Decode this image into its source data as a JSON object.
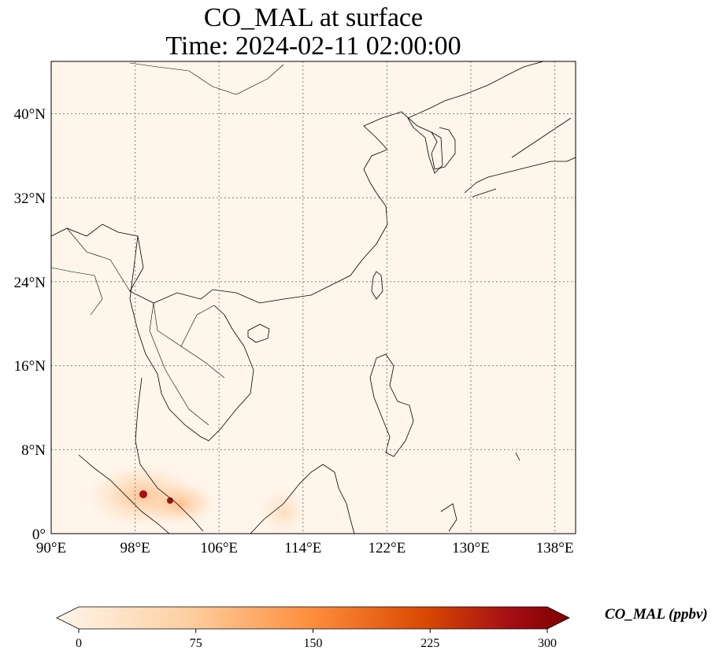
{
  "title": {
    "line1": "CO_MAL at surface",
    "line2": "Time: 2024-02-11 02:00:00"
  },
  "axes": {
    "lon_ticks": [
      "90°E",
      "98°E",
      "106°E",
      "114°E",
      "122°E",
      "130°E",
      "138°E"
    ],
    "lat_ticks": [
      "0°",
      "8°N",
      "16°N",
      "24°N",
      "32°N",
      "40°N"
    ]
  },
  "colorbar": {
    "label": "CO_MAL (ppbv)",
    "tick_labels": [
      "0",
      "75",
      "150",
      "225",
      "300"
    ],
    "colors": [
      "#fff5eb",
      "#fdd0a2",
      "#fd8d3c",
      "#d94801",
      "#a50f15",
      "#7f0000"
    ]
  },
  "map": {
    "background_color": "#fff5eb",
    "coastline_color": "#000000",
    "gridline_style": "dotted"
  }
}
